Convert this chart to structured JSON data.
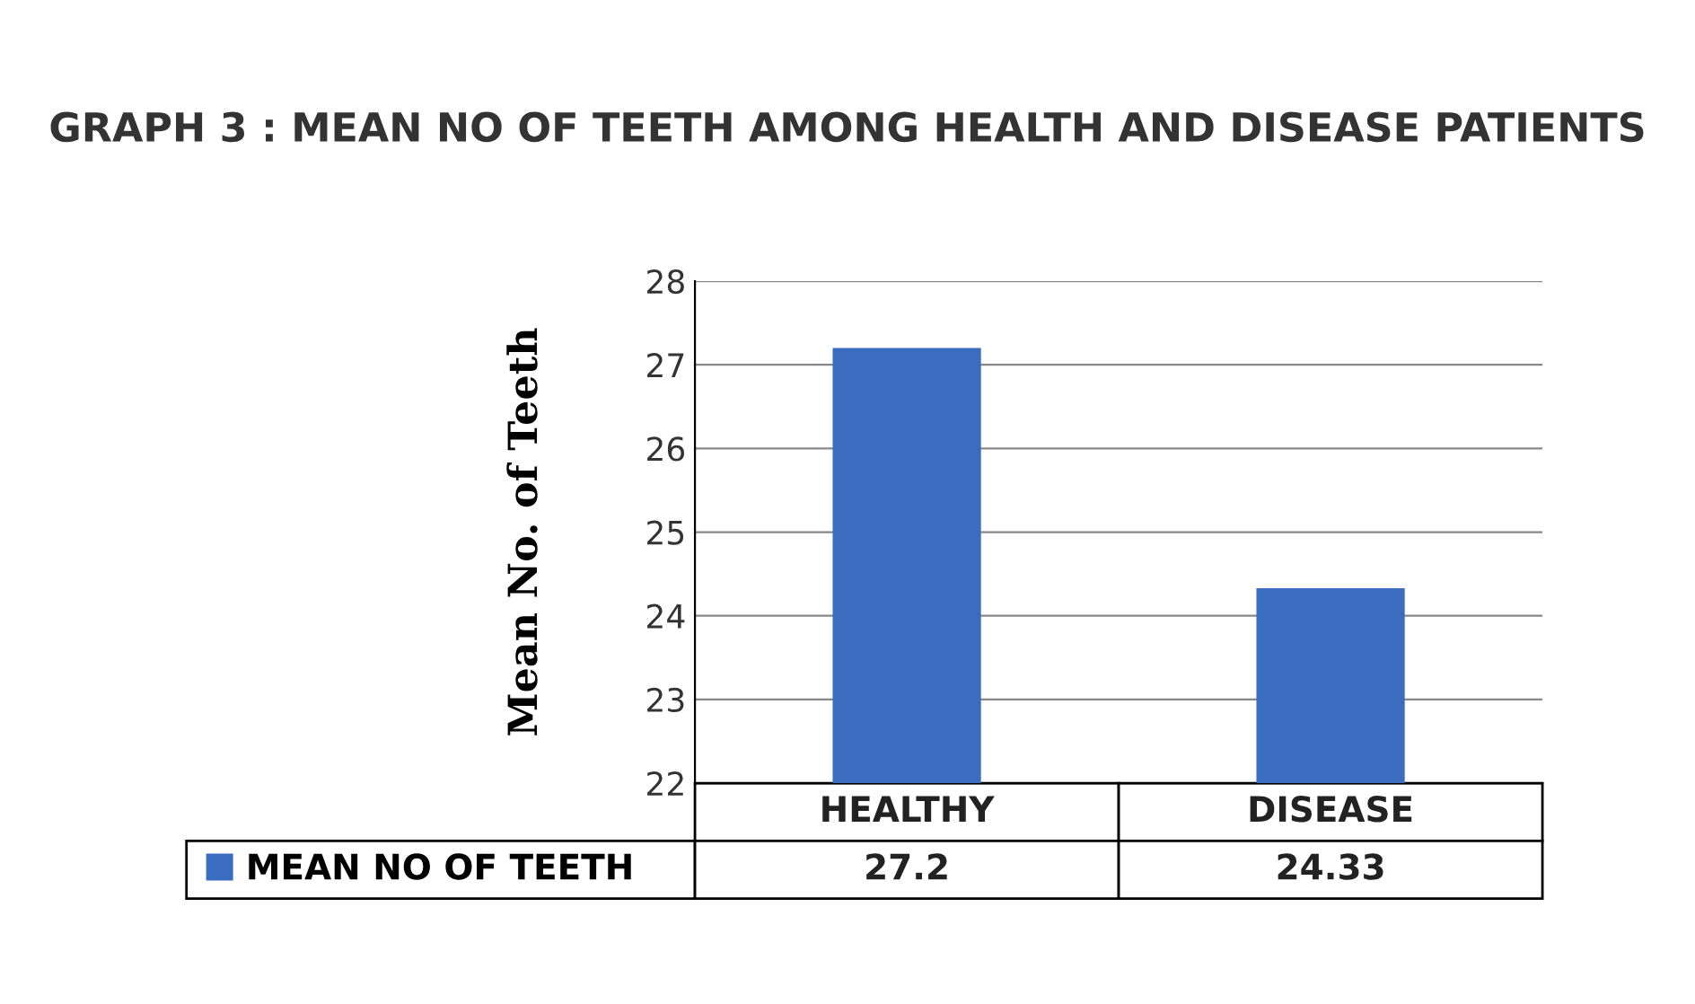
{
  "chart_data": {
    "type": "bar",
    "title": "GRAPH 3 : MEAN NO OF TEETH AMONG HEALTH AND DISEASE PATIENTS",
    "ylabel": "Mean No. of Teeth",
    "categories": [
      "HEALTHY",
      "DISEASE"
    ],
    "series": [
      {
        "name": "MEAN NO OF TEETH",
        "color": "#3a6cc0",
        "values": [
          27.2,
          24.33
        ]
      }
    ],
    "ylim": [
      22,
      28
    ],
    "yticks": [
      22,
      23,
      24,
      25,
      26,
      27,
      28
    ],
    "grid": "y",
    "data_labels": true,
    "legend": "bottom left"
  }
}
